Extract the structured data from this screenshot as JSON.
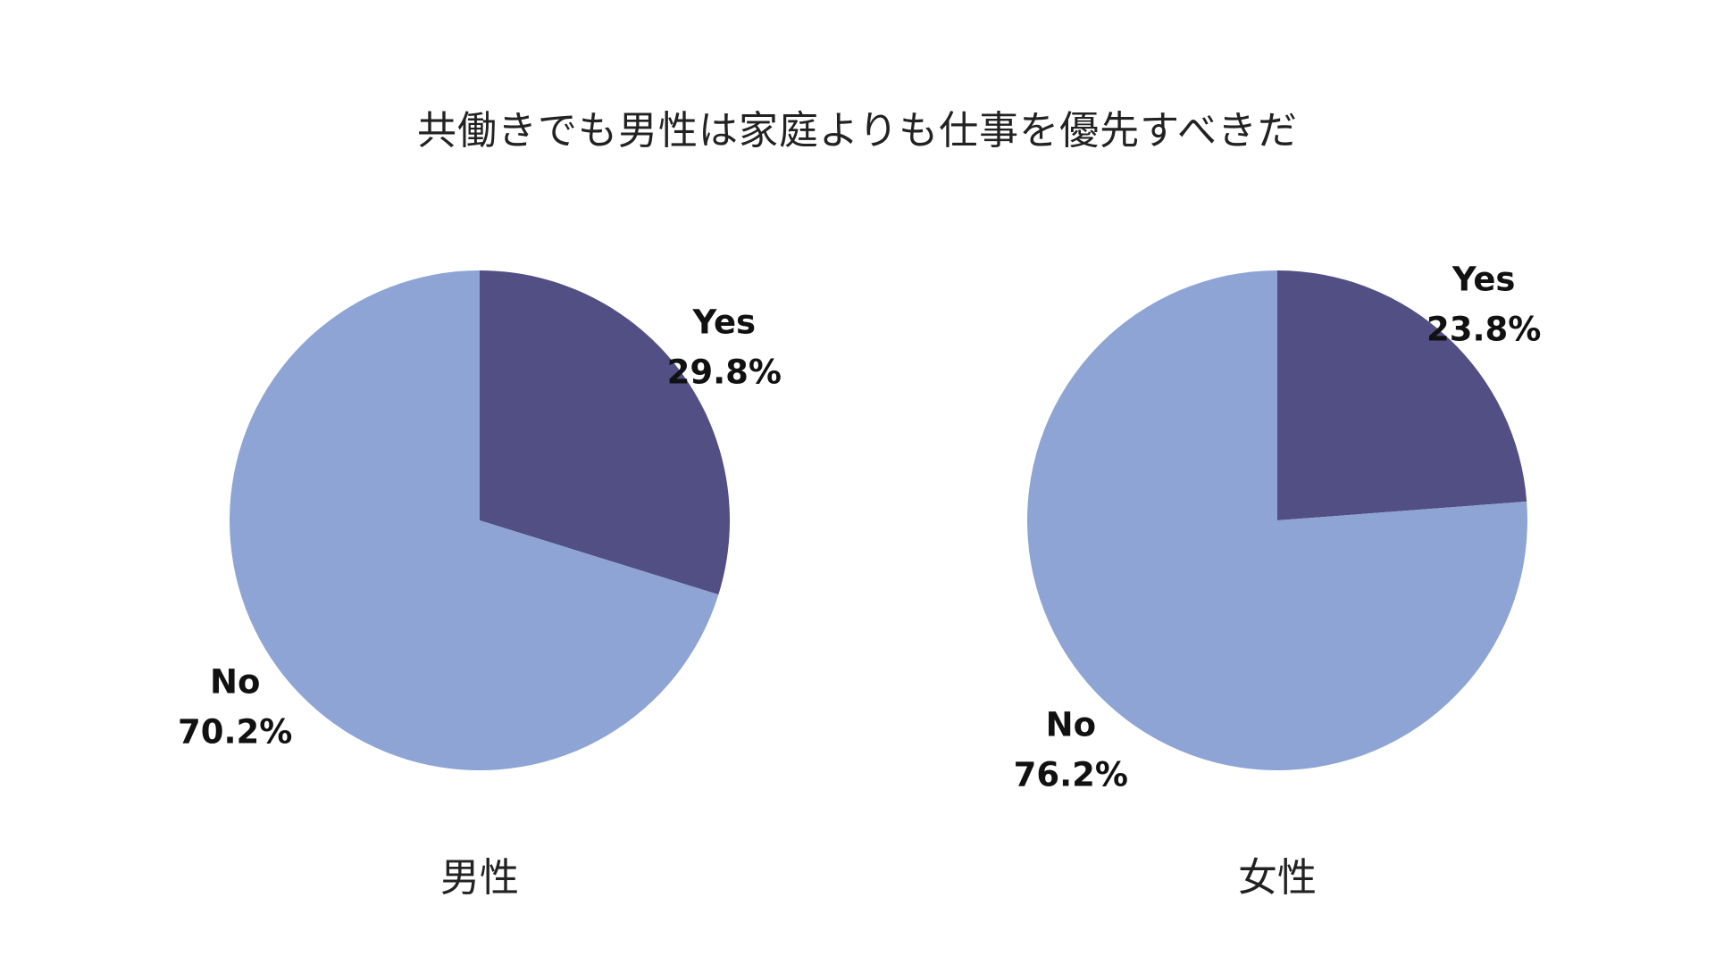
{
  "title": "共働きでも男性は家庭よりも仕事を優先すべきだ",
  "colors": {
    "yes": "#524f85",
    "no": "#8da4d4",
    "background": "#ffffff"
  },
  "chart_data": [
    {
      "type": "pie",
      "title": "男性",
      "labels": [
        "Yes",
        "No"
      ],
      "values": [
        29.8,
        70.2
      ],
      "value_labels": [
        "29.8%",
        "70.2%"
      ],
      "start_angle": "12 o'clock",
      "direction": "clockwise"
    },
    {
      "type": "pie",
      "title": "女性",
      "labels": [
        "Yes",
        "No"
      ],
      "values": [
        23.8,
        76.2
      ],
      "value_labels": [
        "23.8%",
        "76.2%"
      ],
      "start_angle": "12 o'clock",
      "direction": "clockwise"
    }
  ]
}
